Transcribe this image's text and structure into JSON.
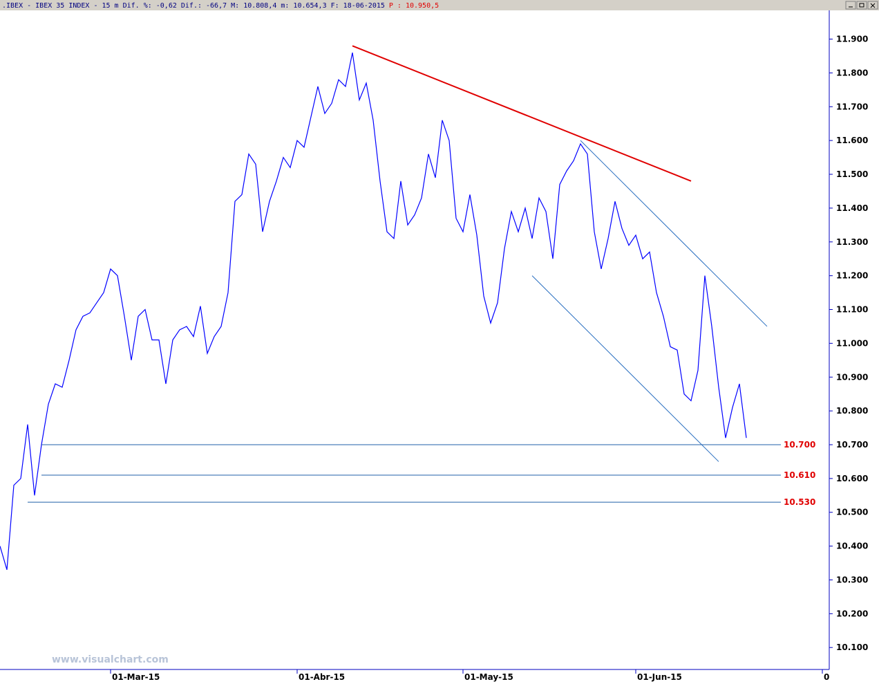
{
  "header": {
    "text": ".IBEX - IBEX 35 INDEX -  15 m Dif. %: -0,62 Dif.: -66,7 M: 10.808,4 m: 10.654,3 F: 18-06-2015",
    "price": "P : 10.950,5"
  },
  "chart_data": {
    "type": "line",
    "watermark": "www.visualchart.com",
    "categories": [
      null,
      null,
      null,
      null,
      null,
      null,
      null,
      null,
      null,
      null,
      null,
      null,
      null,
      null,
      null,
      null,
      "01-Mar-15",
      null,
      null,
      null,
      null,
      null,
      null,
      null,
      null,
      null,
      null,
      null,
      null,
      null,
      null,
      null,
      null,
      null,
      null,
      null,
      null,
      null,
      null,
      null,
      null,
      null,
      null,
      "01-Abr-15",
      null,
      null,
      null,
      null,
      null,
      null,
      null,
      null,
      null,
      null,
      null,
      null,
      null,
      null,
      null,
      null,
      null,
      null,
      null,
      null,
      null,
      null,
      null,
      "01-May-15",
      null,
      null,
      null,
      null,
      null,
      null,
      null,
      null,
      null,
      null,
      null,
      null,
      null,
      null,
      null,
      null,
      null,
      null,
      null,
      null,
      null,
      null,
      null,
      null,
      "01-Jun-15",
      null,
      null,
      null,
      null,
      null,
      null,
      null,
      null,
      null,
      null,
      null,
      null,
      null,
      null,
      null,
      null,
      null,
      null,
      null,
      null,
      null,
      null,
      null,
      null,
      null,
      null,
      "0"
    ],
    "series": [
      {
        "color": "#0000ff",
        "values": [
          10400,
          10330,
          10580,
          10600,
          10760,
          10550,
          10700,
          10820,
          10880,
          10870,
          10950,
          11040,
          11080,
          11090,
          11120,
          11150,
          11220,
          11200,
          11080,
          10950,
          11080,
          11100,
          11010,
          11010,
          10880,
          11010,
          11040,
          11050,
          11020,
          11110,
          10970,
          11020,
          11050,
          11150,
          11420,
          11440,
          11560,
          11530,
          11330,
          11420,
          11480,
          11550,
          11520,
          11600,
          11580,
          11670,
          11760,
          11680,
          11710,
          11780,
          11760,
          11860,
          11720,
          11770,
          11660,
          11480,
          11330,
          11310,
          11480,
          11350,
          11380,
          11430,
          11560,
          11490,
          11660,
          11600,
          11370,
          11330,
          11440,
          11320,
          11140,
          11060,
          11120,
          11280,
          11390,
          11330,
          11400,
          11310,
          11430,
          11390,
          11250,
          11470,
          11510,
          11540,
          11590,
          11560,
          11330,
          11220,
          11310,
          11420,
          11340,
          11290,
          11320,
          11250,
          11270,
          11150,
          11080,
          10990,
          10980,
          10850,
          10830,
          10920,
          11200,
          11050,
          10870,
          10720,
          10810,
          10880,
          10720,
          null,
          null,
          null,
          null,
          null,
          null,
          null,
          null,
          null,
          null,
          null
        ]
      }
    ],
    "ylim": [
      10035,
      11985
    ],
    "yticks": [
      {
        "value": 10100,
        "label": "10.100"
      },
      {
        "value": 10200,
        "label": "10.200"
      },
      {
        "value": 10300,
        "label": "10.300"
      },
      {
        "value": 10400,
        "label": "10.400"
      },
      {
        "value": 10500,
        "label": "10.500"
      },
      {
        "value": 10600,
        "label": "10.600"
      },
      {
        "value": 10700,
        "label": "10.700"
      },
      {
        "value": 10800,
        "label": "10.800"
      },
      {
        "value": 10900,
        "label": "10.900"
      },
      {
        "value": 11000,
        "label": "11.000"
      },
      {
        "value": 11100,
        "label": "11.100"
      },
      {
        "value": 11200,
        "label": "11.200"
      },
      {
        "value": 11300,
        "label": "11.300"
      },
      {
        "value": 11400,
        "label": "11.400"
      },
      {
        "value": 11500,
        "label": "11.500"
      },
      {
        "value": 11600,
        "label": "11.600"
      },
      {
        "value": 11700,
        "label": "11.700"
      },
      {
        "value": 11800,
        "label": "11.800"
      },
      {
        "value": 11900,
        "label": "11.900"
      }
    ],
    "levels": [
      {
        "value": 10700,
        "label": "10.700",
        "from": 6,
        "color": "#1f5fa8"
      },
      {
        "value": 10610,
        "label": "10.610",
        "from": 6,
        "color": "#1f5fa8"
      },
      {
        "value": 10530,
        "label": "10.530",
        "from": 4,
        "color": "#1f5fa8"
      }
    ],
    "trendlines": [
      {
        "color": "#e00000",
        "from": [
          51,
          11880
        ],
        "to": [
          100,
          11480
        ]
      },
      {
        "color": "#2a6fc0",
        "from": [
          84,
          11600
        ],
        "to": [
          111,
          11050
        ]
      },
      {
        "color": "#2a6fc0",
        "from": [
          77,
          11200
        ],
        "to": [
          104,
          10650
        ]
      }
    ]
  }
}
